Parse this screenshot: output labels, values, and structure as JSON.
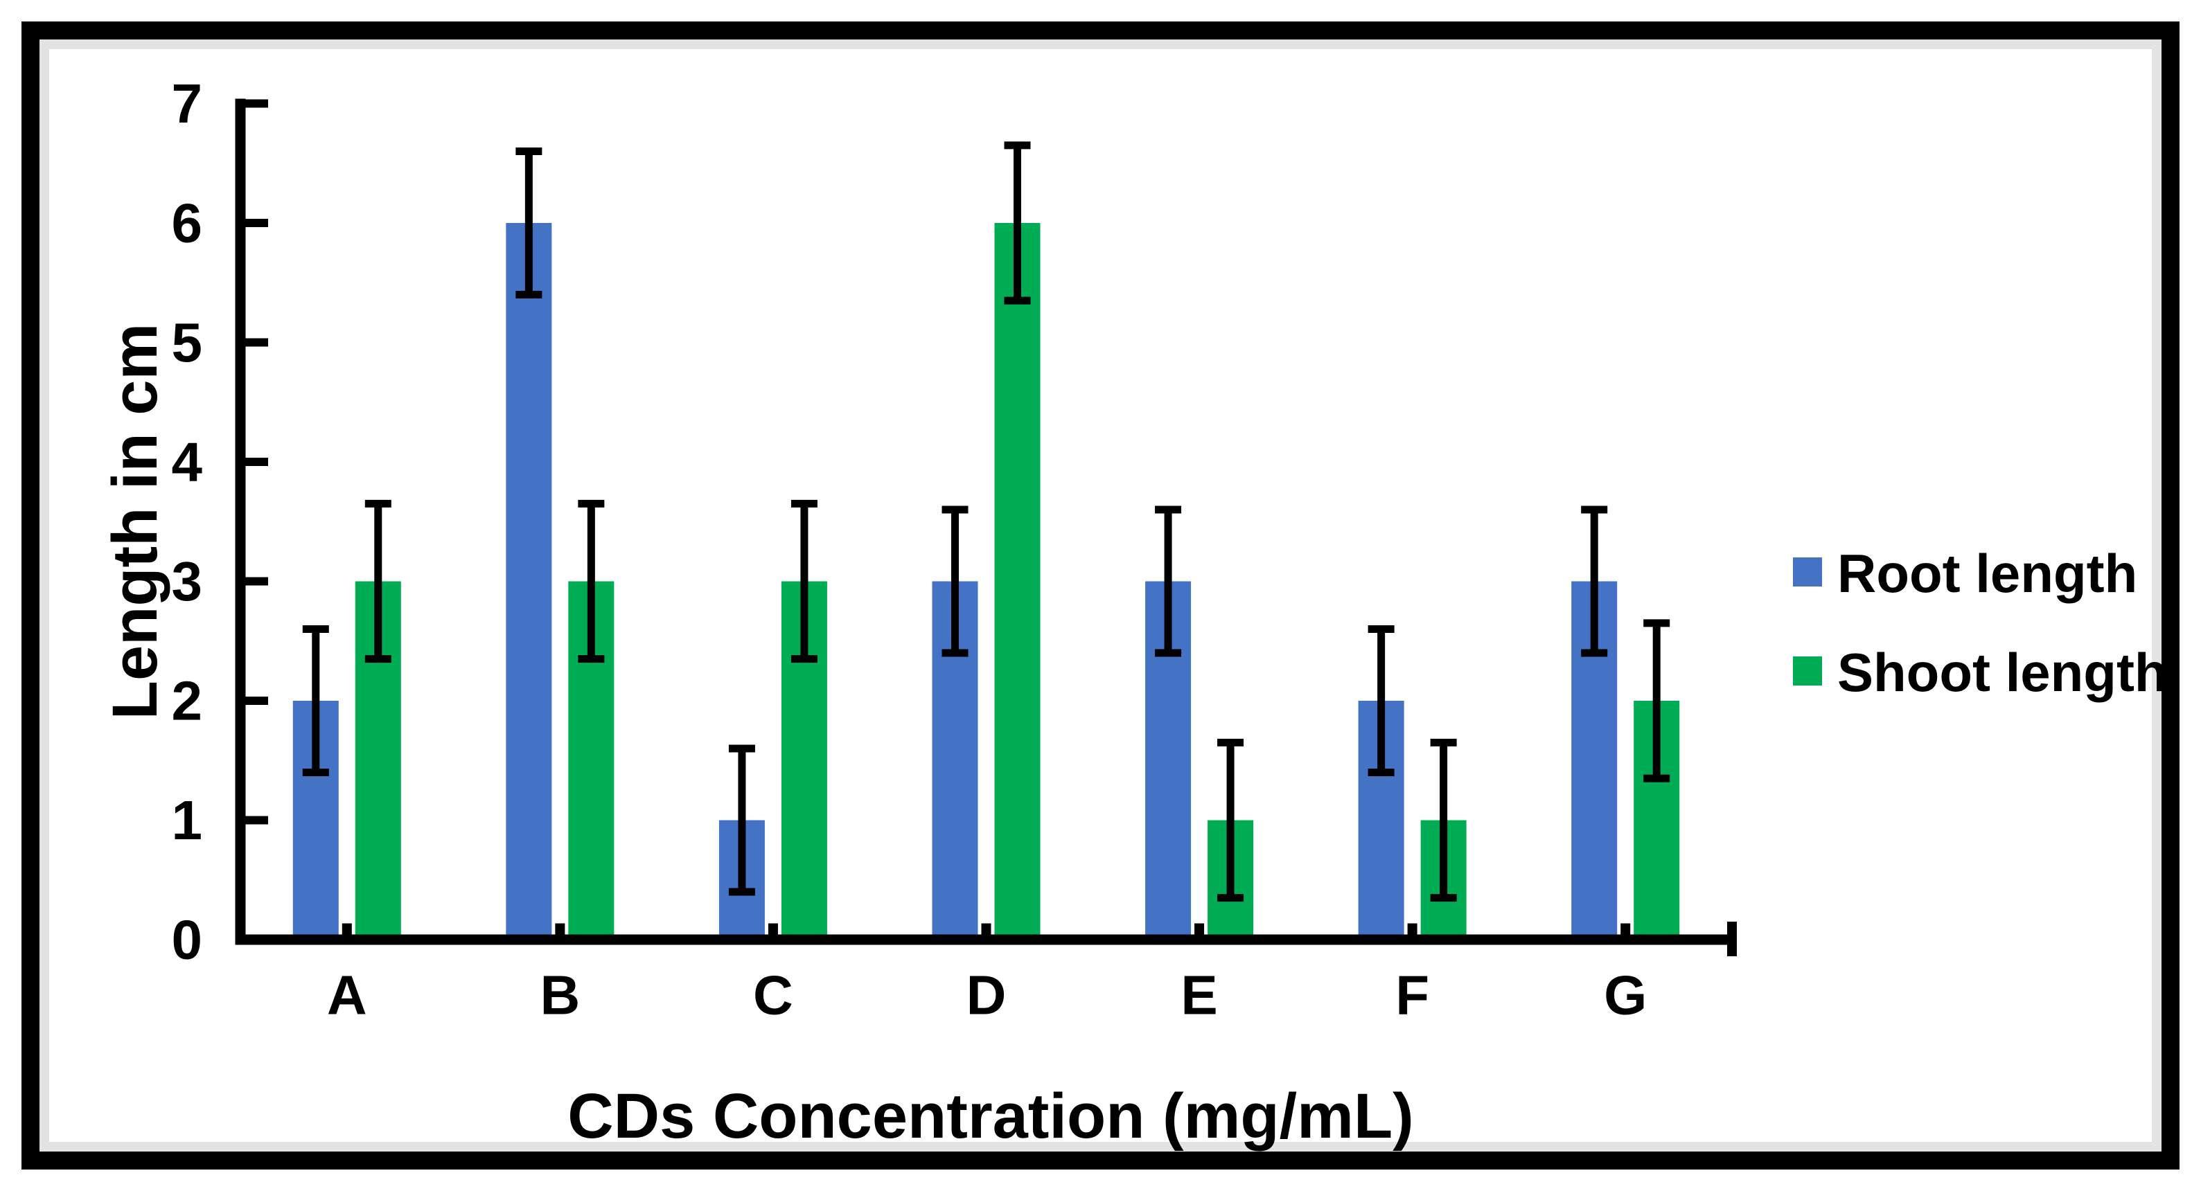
{
  "figure": {
    "background": "#ffffff",
    "outer_border_color": "#000000",
    "inner_trim_color": "#e3e3e3",
    "axis_color": "#000000",
    "error_bar_color": "#000000"
  },
  "chart_data": {
    "type": "bar",
    "title": "",
    "categories": [
      "A",
      "B",
      "C",
      "D",
      "E",
      "F",
      "G"
    ],
    "series": [
      {
        "name": "Root length",
        "color": "#4472C4",
        "values": [
          2,
          6,
          1,
          3,
          3,
          2,
          3
        ],
        "error": 0.6
      },
      {
        "name": "Shoot length",
        "color": "#00AC53",
        "values": [
          3,
          3,
          3,
          6,
          1,
          1,
          2
        ],
        "error": 0.65
      }
    ],
    "xlabel": "CDs Concentration (mg/mL)",
    "ylabel": "Length in cm",
    "ylim": [
      0,
      7
    ],
    "y_ticks": [
      0,
      1,
      2,
      3,
      4,
      5,
      6,
      7
    ],
    "grid": false,
    "error_bars": true,
    "legend_position": "right"
  }
}
